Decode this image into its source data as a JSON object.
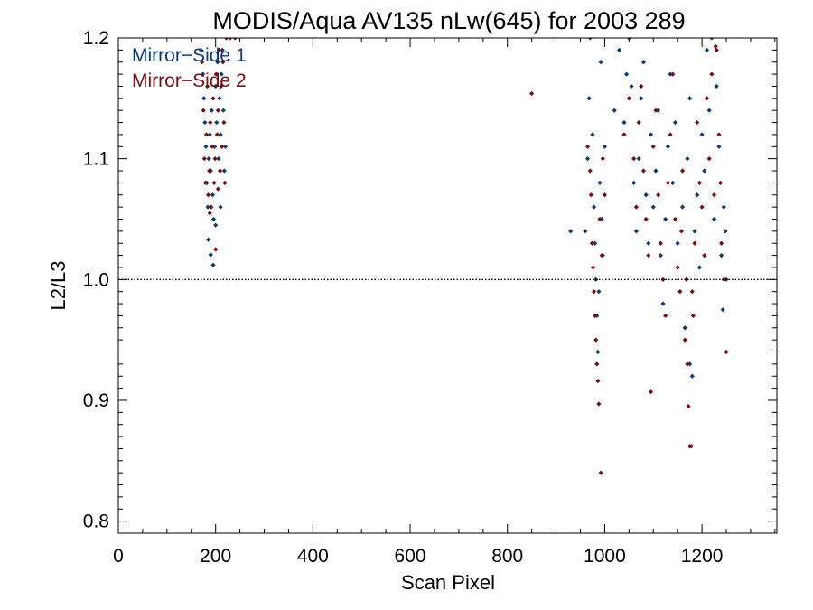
{
  "chart_data": {
    "type": "scatter",
    "title": "MODIS/Aqua AV135 nLw(645) for 2003 289",
    "xlabel": "Scan Pixel",
    "ylabel": "L2/L3",
    "xlim": [
      0,
      1354
    ],
    "ylim": [
      0.79,
      1.2
    ],
    "x_ticks": [
      0,
      200,
      400,
      600,
      800,
      1000,
      1200
    ],
    "y_ticks": [
      0.8,
      0.9,
      1.0,
      1.1,
      1.2
    ],
    "x_tick_labels": [
      "0",
      "200",
      "400",
      "600",
      "800",
      "1000",
      "1200"
    ],
    "y_tick_labels": [
      "0.8",
      "0.9",
      "1.0",
      "1.1",
      "1.2"
    ],
    "reference_line": {
      "y": 1.0,
      "style": "dotted"
    },
    "legend_position": "top-left",
    "series": [
      {
        "name": "Mirror−Side 1",
        "color": "#0d3a7a",
        "marker": "diamond",
        "points": [
          [
            170,
            1.19
          ],
          [
            174,
            1.17
          ],
          [
            176,
            1.15
          ],
          [
            178,
            1.13
          ],
          [
            180,
            1.11
          ],
          [
            182,
            1.08
          ],
          [
            184,
            1.06
          ],
          [
            186,
            1.1
          ],
          [
            188,
            1.12
          ],
          [
            190,
            1.09
          ],
          [
            192,
            1.14
          ],
          [
            194,
            1.07
          ],
          [
            196,
            1.05
          ],
          [
            198,
            1.11
          ],
          [
            200,
            1.16
          ],
          [
            202,
            1.13
          ],
          [
            204,
            1.18
          ],
          [
            206,
            1.1
          ],
          [
            208,
            1.15
          ],
          [
            210,
            1.12
          ],
          [
            212,
            1.17
          ],
          [
            214,
            1.19
          ],
          [
            216,
            1.14
          ],
          [
            218,
            1.09
          ],
          [
            220,
            1.11
          ],
          [
            185,
            1.033
          ],
          [
            190,
            1.0205
          ],
          [
            195,
            1.012
          ],
          [
            200,
            1.045
          ],
          [
            210,
            1.06
          ],
          [
            930,
            1.04
          ],
          [
            960,
            1.04
          ],
          [
            965,
            1.1
          ],
          [
            968,
            1.15
          ],
          [
            970,
            1.2
          ],
          [
            975,
            1.12
          ],
          [
            978,
            1.06
          ],
          [
            980,
            1.03
          ],
          [
            982,
            1.0
          ],
          [
            984,
            0.97
          ],
          [
            986,
            0.94
          ],
          [
            988,
            0.99
          ],
          [
            990,
            1.08
          ],
          [
            992,
            1.18
          ],
          [
            994,
            1.05
          ],
          [
            996,
            1.02
          ],
          [
            1000,
            1.11
          ],
          [
            1020,
            1.14
          ],
          [
            1030,
            1.19
          ],
          [
            1040,
            1.13
          ],
          [
            1045,
            1.17
          ],
          [
            1050,
            1.2
          ],
          [
            1055,
            1.16
          ],
          [
            1060,
            1.08
          ],
          [
            1065,
            1.04
          ],
          [
            1070,
            1.1
          ],
          [
            1075,
            1.15
          ],
          [
            1080,
            1.18
          ],
          [
            1085,
            1.07
          ],
          [
            1090,
            1.03
          ],
          [
            1095,
            1.12
          ],
          [
            1100,
            1.06
          ],
          [
            1105,
            1.09
          ],
          [
            1110,
            1.14
          ],
          [
            1115,
            1.02
          ],
          [
            1120,
            0.98
          ],
          [
            1125,
            1.05
          ],
          [
            1130,
            1.11
          ],
          [
            1135,
            1.17
          ],
          [
            1140,
            1.08
          ],
          [
            1145,
            1.13
          ],
          [
            1150,
            1.03
          ],
          [
            1155,
            0.99
          ],
          [
            1160,
            1.06
          ],
          [
            1165,
            0.96
          ],
          [
            1170,
            1.1
          ],
          [
            1175,
            1.15
          ],
          [
            1180,
            0.92
          ],
          [
            1185,
            1.04
          ],
          [
            1190,
            1.07
          ],
          [
            1195,
            1.01
          ],
          [
            1200,
            1.12
          ],
          [
            1205,
            1.09
          ],
          [
            1210,
            1.19
          ],
          [
            1215,
            1.14
          ],
          [
            1220,
            1.2
          ],
          [
            1225,
            1.05
          ],
          [
            1230,
            1.16
          ],
          [
            1235,
            1.11
          ],
          [
            1240,
            1.02
          ],
          [
            1245,
            1.06
          ],
          [
            1248,
            1.04
          ],
          [
            1250,
            1.0
          ],
          [
            1243,
            0.975
          ],
          [
            1175,
            0.93
          ]
        ]
      },
      {
        "name": "Mirror−Side 2",
        "color": "#7a0d14",
        "marker": "diamond",
        "points": [
          [
            172,
            1.18
          ],
          [
            175,
            1.14
          ],
          [
            177,
            1.1
          ],
          [
            179,
            1.08
          ],
          [
            181,
            1.12
          ],
          [
            183,
            1.16
          ],
          [
            185,
            1.07
          ],
          [
            187,
            1.09
          ],
          [
            189,
            1.13
          ],
          [
            191,
            1.06
          ],
          [
            193,
            1.11
          ],
          [
            195,
            1.15
          ],
          [
            197,
            1.08
          ],
          [
            199,
            1.1
          ],
          [
            201,
            1.17
          ],
          [
            203,
            1.12
          ],
          [
            205,
            1.14
          ],
          [
            207,
            1.19
          ],
          [
            209,
            1.09
          ],
          [
            211,
            1.16
          ],
          [
            213,
            1.11
          ],
          [
            215,
            1.18
          ],
          [
            217,
            1.13
          ],
          [
            219,
            1.08
          ],
          [
            222,
            1.2
          ],
          [
            230,
            1.2
          ],
          [
            240,
            1.2
          ],
          [
            200,
            1.025
          ],
          [
            188,
            1.055
          ],
          [
            205,
            1.075
          ],
          [
            850,
            1.154
          ],
          [
            965,
            1.11
          ],
          [
            970,
            1.09
          ],
          [
            972,
            1.07
          ],
          [
            974,
            1.03
          ],
          [
            976,
            1.01
          ],
          [
            978,
            0.99
          ],
          [
            980,
            0.97
          ],
          [
            982,
            0.95
          ],
          [
            984,
            0.93
          ],
          [
            986,
            0.916
          ],
          [
            988,
            0.897
          ],
          [
            990,
            1.05
          ],
          [
            992,
            0.84
          ],
          [
            994,
            1.02
          ],
          [
            996,
            1.1
          ],
          [
            1000,
            1.07
          ],
          [
            1040,
            1.12
          ],
          [
            1050,
            1.15
          ],
          [
            1060,
            1.1
          ],
          [
            1065,
            1.06
          ],
          [
            1070,
            1.13
          ],
          [
            1075,
            1.16
          ],
          [
            1080,
            1.09
          ],
          [
            1085,
            1.05
          ],
          [
            1090,
            1.02
          ],
          [
            1095,
            0.907
          ],
          [
            1100,
            1.11
          ],
          [
            1105,
            1.14
          ],
          [
            1110,
            1.07
          ],
          [
            1115,
            1.03
          ],
          [
            1120,
            1.0
          ],
          [
            1125,
            0.97
          ],
          [
            1130,
            1.08
          ],
          [
            1135,
            1.12
          ],
          [
            1140,
            1.17
          ],
          [
            1145,
            1.05
          ],
          [
            1150,
            1.01
          ],
          [
            1155,
            0.99
          ],
          [
            1160,
            1.09
          ],
          [
            1165,
            0.95
          ],
          [
            1170,
            0.93
          ],
          [
            1172,
            0.895
          ],
          [
            1175,
            0.862
          ],
          [
            1178,
            0.862
          ],
          [
            1180,
            0.99
          ],
          [
            1185,
            1.03
          ],
          [
            1190,
            1.13
          ],
          [
            1195,
            1.08
          ],
          [
            1200,
            1.06
          ],
          [
            1205,
            1.02
          ],
          [
            1210,
            1.15
          ],
          [
            1215,
            1.1
          ],
          [
            1220,
            1.17
          ],
          [
            1225,
            1.07
          ],
          [
            1230,
            1.19
          ],
          [
            1235,
            1.12
          ],
          [
            1240,
            1.03
          ],
          [
            1245,
            1.0
          ],
          [
            1250,
            0.94
          ],
          [
            1228,
            1.193
          ],
          [
            1238,
            1.08
          ],
          [
            1182,
            0.97
          ],
          [
            1168,
            1.0
          ],
          [
            1158,
            1.04
          ]
        ]
      }
    ]
  }
}
